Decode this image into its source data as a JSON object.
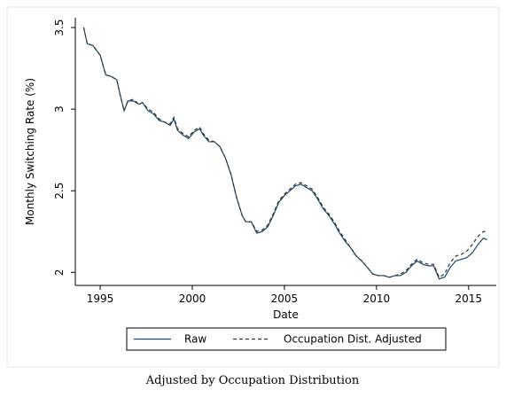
{
  "chart_data": {
    "type": "line",
    "y_label": "Monthly Switching Rate (%)",
    "x_label": "Date",
    "caption": "Adjusted by Occupation Distribution",
    "x": [
      1994.1,
      1994.3,
      1994.6,
      1995.0,
      1995.3,
      1995.6,
      1995.9,
      1996.1,
      1996.3,
      1996.5,
      1996.8,
      1997.1,
      1997.3,
      1997.6,
      1997.9,
      1998.2,
      1998.5,
      1998.8,
      1999.0,
      1999.2,
      1999.5,
      1999.8,
      2000.1,
      2000.4,
      2000.6,
      2000.9,
      2001.2,
      2001.5,
      2001.8,
      2002.1,
      2002.4,
      2002.7,
      2002.9,
      2003.2,
      2003.5,
      2003.8,
      2004.1,
      2004.4,
      2004.7,
      2005.0,
      2005.3,
      2005.6,
      2005.9,
      2006.2,
      2006.5,
      2006.8,
      2007.1,
      2007.4,
      2007.7,
      2008.0,
      2008.3,
      2008.6,
      2008.9,
      2009.2,
      2009.5,
      2009.8,
      2010.1,
      2010.4,
      2010.7,
      2011.0,
      2011.3,
      2011.6,
      2011.9,
      2012.2,
      2012.5,
      2012.8,
      2013.1,
      2013.4,
      2013.7,
      2014.0,
      2014.3,
      2014.6,
      2014.9,
      2015.2,
      2015.5,
      2015.8,
      2016.0
    ],
    "series": [
      {
        "name": "Raw",
        "color": "#1a476f",
        "dash": false,
        "values": [
          3.5,
          3.4,
          3.39,
          3.33,
          3.21,
          3.2,
          3.18,
          3.08,
          2.99,
          3.05,
          3.05,
          3.03,
          3.04,
          2.99,
          2.97,
          2.93,
          2.92,
          2.9,
          2.94,
          2.87,
          2.84,
          2.82,
          2.86,
          2.88,
          2.84,
          2.8,
          2.8,
          2.77,
          2.7,
          2.6,
          2.46,
          2.35,
          2.31,
          2.31,
          2.24,
          2.25,
          2.28,
          2.35,
          2.43,
          2.47,
          2.5,
          2.53,
          2.54,
          2.52,
          2.5,
          2.45,
          2.39,
          2.35,
          2.3,
          2.24,
          2.19,
          2.15,
          2.1,
          2.07,
          2.03,
          1.99,
          1.98,
          1.98,
          1.97,
          1.98,
          1.98,
          2.0,
          2.04,
          2.07,
          2.05,
          2.04,
          2.04,
          1.96,
          1.97,
          2.03,
          2.07,
          2.08,
          2.09,
          2.12,
          2.17,
          2.21,
          2.2
        ]
      },
      {
        "name": "Occupation Dist. Adjusted",
        "color": "#333333",
        "dash": true,
        "values": [
          3.5,
          3.4,
          3.39,
          3.33,
          3.21,
          3.2,
          3.18,
          3.08,
          2.99,
          3.05,
          3.06,
          3.03,
          3.04,
          3.0,
          2.98,
          2.94,
          2.92,
          2.91,
          2.95,
          2.88,
          2.85,
          2.83,
          2.87,
          2.89,
          2.85,
          2.81,
          2.8,
          2.77,
          2.7,
          2.6,
          2.46,
          2.35,
          2.31,
          2.31,
          2.25,
          2.26,
          2.29,
          2.36,
          2.44,
          2.48,
          2.51,
          2.54,
          2.55,
          2.53,
          2.51,
          2.46,
          2.4,
          2.36,
          2.31,
          2.25,
          2.2,
          2.15,
          2.1,
          2.07,
          2.03,
          1.99,
          1.98,
          1.98,
          1.97,
          1.98,
          1.99,
          2.01,
          2.05,
          2.08,
          2.06,
          2.05,
          2.05,
          1.97,
          1.99,
          2.06,
          2.1,
          2.11,
          2.13,
          2.17,
          2.22,
          2.25,
          2.25
        ]
      }
    ],
    "xlim": [
      1993.65,
      2016.5
    ],
    "xticks": [
      1995,
      2000,
      2005,
      2010,
      2015
    ],
    "ylim": [
      1.92,
      3.56
    ],
    "yticks": [
      2,
      2.5,
      3,
      3.5
    ],
    "grid": false,
    "legend": "bottom"
  }
}
